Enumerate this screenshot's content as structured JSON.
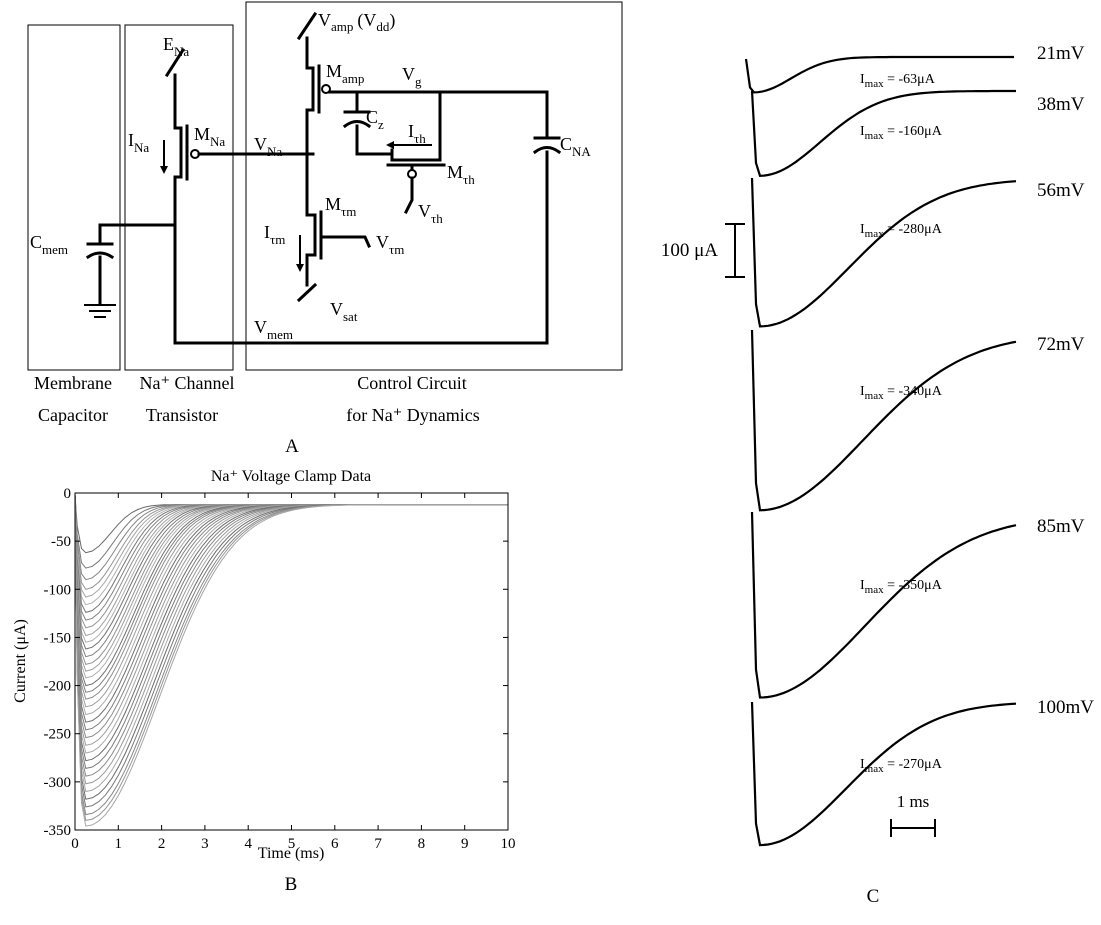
{
  "colors": {
    "ink": "#000000",
    "background": "#ffffff",
    "trace_dark": "#6e6e6e",
    "trace_light": "#b4b4b4"
  },
  "panel_a": {
    "label": "A",
    "blocks": [
      {
        "id": "membrane",
        "line1": "Membrane",
        "line2": "Capacitor"
      },
      {
        "id": "channel",
        "line1": "Na⁺ Channel",
        "line2": "Transistor"
      },
      {
        "id": "control",
        "line1": "Control Circuit",
        "line2": "for Na⁺ Dynamics"
      }
    ],
    "labels": {
      "vamp": "V",
      "vamp_sub": "amp",
      "vdd": "(V",
      "vdd_sub": "dd",
      "vdd_close": ")",
      "ena": "E",
      "ena_sub": "Na",
      "mamp": "M",
      "mamp_sub": "amp",
      "vg": "V",
      "vg_sub": "g",
      "cz": "C",
      "cz_sub": "z",
      "cna": "C",
      "cna_sub": "NA",
      "ina": "I",
      "ina_sub": "Na",
      "mna": "M",
      "mna_sub": "Na",
      "vna": "V",
      "vna_sub": "Na",
      "ith": "I",
      "ith_sub": "τh",
      "mth": "M",
      "mth_sub": "τh",
      "vth": "V",
      "vth_sub": "τh",
      "cmem": "C",
      "cmem_sub": "mem",
      "mtm": "M",
      "mtm_sub": "τm",
      "itm": "I",
      "itm_sub": "τm",
      "vtm": "V",
      "vtm_sub": "τm",
      "vsat": "V",
      "vsat_sub": "sat",
      "vmem": "V",
      "vmem_sub": "mem"
    }
  },
  "chart_data": [
    {
      "panel": "B",
      "type": "line",
      "title": "Na⁺ Voltage Clamp Data",
      "xlabel": "Time (ms)",
      "ylabel": "Current (μA)",
      "xlim": [
        0,
        10
      ],
      "ylim": [
        -350,
        0
      ],
      "xticks": [
        "0",
        "1",
        "2",
        "3",
        "4",
        "5",
        "6",
        "7",
        "8",
        "9",
        "10"
      ],
      "yticks": [
        "0",
        "-50",
        "-100",
        "-150",
        "-200",
        "-250",
        "-300",
        "-350"
      ],
      "peak_time_ms": 0.25,
      "baseline_uA": -12,
      "series_peaks_uA": [
        -62,
        -78,
        -90,
        -100,
        -108,
        -116,
        -124,
        -132,
        -140,
        -148,
        -155,
        -162,
        -170,
        -178,
        -185,
        -192,
        -200,
        -207,
        -214,
        -222,
        -230,
        -238,
        -246,
        -254,
        -262,
        -270,
        -278,
        -286,
        -294,
        -302,
        -310,
        -318,
        -326,
        -334,
        -340,
        -346
      ],
      "panel_label": "B"
    },
    {
      "panel": "C",
      "type": "line",
      "scale_current": "100 μA",
      "scale_time": "1 ms",
      "panel_label": "C",
      "traces": [
        {
          "voltage": "21mV",
          "imax_prefix": "I",
          "imax_sub": "max",
          "imax_value": " = -63μA",
          "peak_uA": -63
        },
        {
          "voltage": "38mV",
          "imax_prefix": "I",
          "imax_sub": "max",
          "imax_value": " = -160μA",
          "peak_uA": -160
        },
        {
          "voltage": "56mV",
          "imax_prefix": "I",
          "imax_sub": "max",
          "imax_value": " = -280μA",
          "peak_uA": -280
        },
        {
          "voltage": "72mV",
          "imax_prefix": "I",
          "imax_sub": "max",
          "imax_value": " = -340μA",
          "peak_uA": -340
        },
        {
          "voltage": "85mV",
          "imax_prefix": "I",
          "imax_sub": "max",
          "imax_value": " = -350μA",
          "peak_uA": -350
        },
        {
          "voltage": "100mV",
          "imax_prefix": "I",
          "imax_sub": "max",
          "imax_value": " = -270μA",
          "peak_uA": -270
        }
      ]
    }
  ]
}
